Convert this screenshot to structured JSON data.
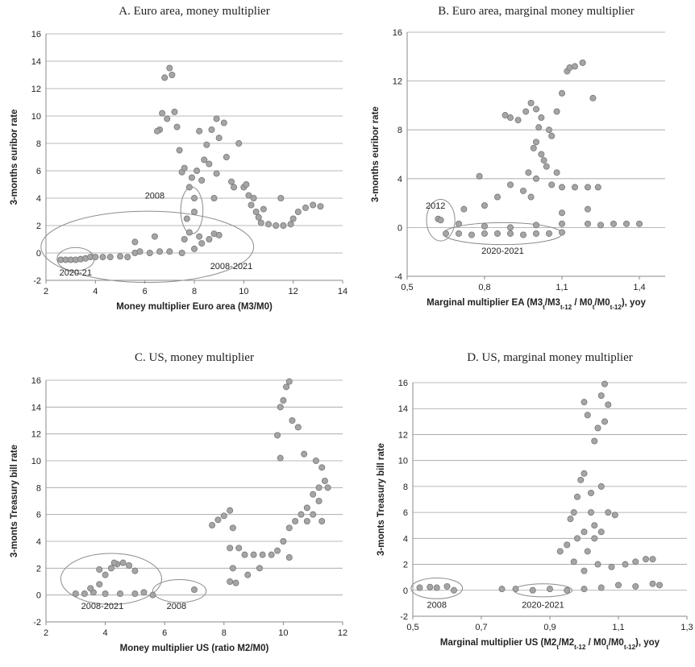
{
  "chart_data": [
    {
      "type": "scatter",
      "title": "A. Euro area, money multiplier",
      "xlabel": "Money multiplier Euro area (M3/M0)",
      "ylabel": "3-months euribor rate",
      "xlim": [
        2,
        14
      ],
      "xticks": [
        2,
        4,
        6,
        8,
        10,
        12,
        14
      ],
      "ylim": [
        -2,
        16
      ],
      "yticks": [
        -2,
        0,
        2,
        4,
        6,
        8,
        10,
        12,
        14,
        16
      ],
      "grid": true,
      "color": "#a5a5a5",
      "annotations": [
        "2008",
        "2008-2021",
        "2020-21"
      ],
      "x": [
        2.6,
        2.8,
        3.0,
        3.2,
        3.4,
        3.6,
        3.8,
        4.0,
        4.3,
        4.6,
        5.0,
        5.3,
        5.6,
        5.8,
        6.2,
        6.6,
        7.0,
        7.5,
        8.0,
        8.3,
        8.6,
        8.8,
        9.0,
        5.6,
        6.4,
        7.6,
        7.8,
        8.2,
        7.7,
        8.0,
        6.6,
        6.7,
        6.9,
        6.5,
        7.0,
        7.1,
        6.8,
        7.2,
        7.3,
        7.4,
        7.5,
        7.6,
        7.8,
        8.0,
        8.1,
        8.3,
        8.5,
        8.7,
        8.9,
        9.0,
        9.2,
        8.6,
        8.9,
        9.3,
        9.5,
        9.8,
        10.0,
        10.2,
        10.3,
        10.5,
        10.7,
        11.0,
        11.3,
        11.6,
        11.9,
        12.0,
        12.2,
        12.5,
        12.8,
        13.1,
        10.1,
        10.4,
        10.8,
        11.5,
        8.2,
        8.4,
        7.9,
        8.8,
        9.6,
        10.6
      ],
      "values": [
        -0.5,
        -0.5,
        -0.5,
        -0.5,
        -0.45,
        -0.4,
        -0.3,
        -0.3,
        -0.3,
        -0.3,
        -0.25,
        -0.3,
        0.0,
        0.1,
        0.0,
        0.1,
        0.1,
        0.0,
        0.3,
        0.7,
        1.0,
        1.4,
        1.3,
        0.8,
        1.2,
        1.0,
        1.5,
        1.2,
        2.5,
        3.0,
        9.0,
        10.2,
        9.8,
        8.9,
        13.5,
        13.0,
        12.8,
        10.3,
        9.2,
        7.5,
        5.9,
        6.2,
        4.8,
        4.0,
        6.0,
        5.3,
        7.9,
        9.0,
        9.8,
        8.4,
        9.5,
        6.5,
        5.8,
        7.0,
        5.2,
        8.0,
        4.8,
        4.2,
        3.5,
        3.0,
        2.2,
        2.1,
        2.0,
        2.0,
        2.1,
        2.5,
        3.0,
        3.3,
        3.5,
        3.4,
        5.0,
        4.0,
        3.2,
        4.0,
        8.9,
        6.8,
        5.5,
        4.0,
        4.8,
        2.6
      ]
    },
    {
      "type": "scatter",
      "title": "B. Euro area, marginal money multiplier",
      "xlabel": [
        {
          "text": "Marginal multiplier EA (M3"
        },
        {
          "text": "t",
          "sub": true
        },
        {
          "text": "/M3"
        },
        {
          "text": "t-12",
          "sub": true
        },
        {
          "text": " / M0"
        },
        {
          "text": "t",
          "sub": true
        },
        {
          "text": "/M0"
        },
        {
          "text": "t-12",
          "sub": true
        },
        {
          "text": "), yoy"
        }
      ],
      "ylabel": "3-months euribor rate",
      "xlim": [
        0.5,
        1.5
      ],
      "xticks": [
        {
          "value": 0.5,
          "label": "0,5"
        },
        {
          "value": 0.8,
          "label": "0,8"
        },
        {
          "value": 1.1,
          "label": "1,1"
        },
        {
          "value": 1.4,
          "label": "1,4"
        }
      ],
      "ylim": [
        -4,
        16
      ],
      "yticks": [
        -4,
        0,
        4,
        8,
        12,
        16
      ],
      "grid": true,
      "color": "#a5a5a5",
      "annotations": [
        "2012",
        "2020-2021"
      ],
      "x": [
        0.62,
        0.63,
        0.65,
        0.7,
        0.75,
        0.8,
        0.85,
        0.9,
        0.95,
        1.0,
        1.05,
        1.1,
        0.7,
        0.8,
        0.9,
        1.0,
        1.1,
        1.2,
        1.3,
        1.35,
        1.4,
        1.25,
        0.78,
        0.72,
        0.8,
        0.85,
        0.9,
        0.88,
        0.9,
        0.93,
        0.96,
        0.98,
        1.0,
        1.02,
        1.05,
        1.08,
        1.1,
        1.12,
        1.13,
        1.15,
        1.18,
        1.22,
        1.0,
        1.02,
        1.04,
        0.97,
        1.0,
        1.06,
        1.1,
        1.15,
        1.2,
        1.24,
        0.95,
        0.98,
        1.03,
        1.06,
        0.99,
        1.08,
        1.01,
        1.1,
        1.2
      ],
      "values": [
        0.7,
        0.6,
        -0.5,
        -0.5,
        -0.6,
        -0.5,
        -0.5,
        -0.5,
        -0.6,
        -0.5,
        -0.5,
        -0.4,
        0.3,
        0.1,
        0.0,
        0.2,
        0.3,
        0.3,
        0.3,
        0.3,
        0.3,
        0.2,
        4.2,
        1.5,
        1.8,
        2.5,
        3.5,
        9.2,
        9.0,
        8.8,
        9.5,
        10.2,
        9.7,
        9.0,
        8.0,
        9.5,
        11.0,
        12.8,
        13.1,
        13.2,
        13.5,
        10.6,
        7.0,
        6.0,
        5.0,
        4.5,
        4.0,
        3.5,
        3.3,
        3.3,
        3.3,
        3.3,
        3.0,
        2.5,
        5.5,
        7.5,
        6.5,
        4.5,
        8.2,
        1.2,
        1.5
      ]
    },
    {
      "type": "scatter",
      "title": "C. US, money multiplier",
      "xlabel": "Money multiplier US (ratio M2/M0)",
      "ylabel": "3-monts Treasury bill rate",
      "xlim": [
        2,
        12
      ],
      "xticks": [
        2,
        4,
        6,
        8,
        10,
        12
      ],
      "ylim": [
        -2,
        16
      ],
      "yticks": [
        -2,
        0,
        2,
        4,
        6,
        8,
        10,
        12,
        14,
        16
      ],
      "grid": true,
      "color": "#a5a5a5",
      "annotations": [
        "2008-2021",
        "2008"
      ],
      "x": [
        3.0,
        3.3,
        3.6,
        3.8,
        4.0,
        4.2,
        4.4,
        4.6,
        4.8,
        5.0,
        3.5,
        4.0,
        4.5,
        5.0,
        5.3,
        5.6,
        7.0,
        3.8,
        4.3,
        7.6,
        7.8,
        8.0,
        8.2,
        8.3,
        8.2,
        8.3,
        8.2,
        8.4,
        8.5,
        8.7,
        9.0,
        9.3,
        9.6,
        9.8,
        10.0,
        10.2,
        10.4,
        10.6,
        10.8,
        11.0,
        11.2,
        11.4,
        11.5,
        9.8,
        9.9,
        10.0,
        10.1,
        10.2,
        10.3,
        10.5,
        10.7,
        9.9,
        11.1,
        11.3,
        11.0,
        10.8,
        11.3,
        9.2,
        8.8,
        10.2,
        11.2
      ],
      "values": [
        0.1,
        0.1,
        0.2,
        0.8,
        1.5,
        2.0,
        2.3,
        2.4,
        2.2,
        1.8,
        0.5,
        0.1,
        0.1,
        0.1,
        0.2,
        0.0,
        0.4,
        1.9,
        2.4,
        5.2,
        5.6,
        5.9,
        6.3,
        5.0,
        3.5,
        2.0,
        1.0,
        0.9,
        3.5,
        3.0,
        3.0,
        3.0,
        3.0,
        3.3,
        4.0,
        5.0,
        5.5,
        6.0,
        6.5,
        7.5,
        8.0,
        8.5,
        8.0,
        11.9,
        14.0,
        14.5,
        15.5,
        15.9,
        13.0,
        12.5,
        10.5,
        10.2,
        10.0,
        9.5,
        6.0,
        5.5,
        5.5,
        2.0,
        1.5,
        2.8,
        7.0
      ]
    },
    {
      "type": "scatter",
      "title": "D. US, marginal money multiplier",
      "xlabel": [
        {
          "text": "Marginal multiplier US (M2"
        },
        {
          "text": "t",
          "sub": true
        },
        {
          "text": "/M2"
        },
        {
          "text": "t-12",
          "sub": true
        },
        {
          "text": " / M0"
        },
        {
          "text": "t",
          "sub": true
        },
        {
          "text": "/M0"
        },
        {
          "text": "t-12",
          "sub": true
        },
        {
          "text": "), yoy"
        }
      ],
      "ylabel": "3-monts Treasury bill rate",
      "xlim": [
        0.5,
        1.3
      ],
      "xticks": [
        {
          "value": 0.5,
          "label": "0,5"
        },
        {
          "value": 0.7,
          "label": "0,7"
        },
        {
          "value": 0.9,
          "label": "0,9"
        },
        {
          "value": 1.1,
          "label": "1,1"
        },
        {
          "value": 1.3,
          "label": "1,3"
        }
      ],
      "ylim": [
        -2,
        16
      ],
      "yticks": [
        -2,
        0,
        2,
        4,
        6,
        8,
        10,
        12,
        14,
        16
      ],
      "grid": true,
      "color": "#a5a5a5",
      "annotations": [
        "2008",
        "2020-2021"
      ],
      "x": [
        0.52,
        0.55,
        0.57,
        0.6,
        0.62,
        0.76,
        0.8,
        0.85,
        0.9,
        0.95,
        1.0,
        1.05,
        1.1,
        1.15,
        1.2,
        1.22,
        0.93,
        0.95,
        0.96,
        0.97,
        0.98,
        0.99,
        1.0,
        1.0,
        1.01,
        1.03,
        1.04,
        1.05,
        1.06,
        1.07,
        1.06,
        1.02,
        1.03,
        1.0,
        0.98,
        1.01,
        1.04,
        1.08,
        1.12,
        1.15,
        1.18,
        1.2,
        1.05,
        1.07,
        1.09,
        0.97,
        1.0,
        1.02,
        1.03,
        1.05
      ],
      "values": [
        0.2,
        0.25,
        0.2,
        0.3,
        0.0,
        0.1,
        0.1,
        0.0,
        0.1,
        0.0,
        0.1,
        0.2,
        0.4,
        0.3,
        0.5,
        0.4,
        3.0,
        3.5,
        5.5,
        6.0,
        7.2,
        8.5,
        9.0,
        14.5,
        13.5,
        11.5,
        12.5,
        15.0,
        15.9,
        14.3,
        13.0,
        6.0,
        5.0,
        4.5,
        4.0,
        3.0,
        2.0,
        1.8,
        2.0,
        2.2,
        2.4,
        2.4,
        8.0,
        6.0,
        5.8,
        2.2,
        1.5,
        7.5,
        4.0,
        4.5
      ]
    }
  ]
}
